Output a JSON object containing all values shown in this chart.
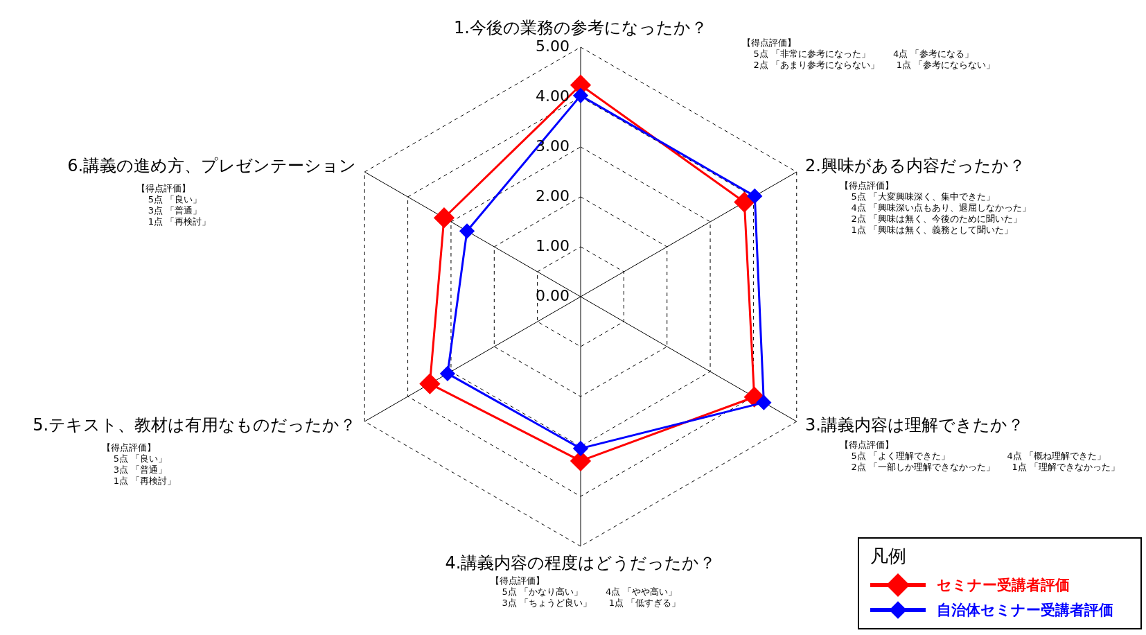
{
  "chart_data": {
    "type": "radar",
    "categories": [
      "1.今後の業務の参考になったか？",
      "2.興味がある内容だったか？",
      "3.講義内容は理解できたか？",
      "4.講義内容の程度はどうだったか？",
      "5.テキスト、教材は有用なものだったか？",
      "6.講義の進め方、プレゼンテーション"
    ],
    "series": [
      {
        "name": "セミナー受講者評価",
        "color": "#ff0000",
        "values": [
          4.24,
          3.79,
          4.02,
          3.29,
          3.49,
          3.16
        ]
      },
      {
        "name": "自治体セミナー受講者評価",
        "color": "#0000ff",
        "values": [
          4.03,
          4.03,
          4.24,
          3.04,
          3.08,
          2.63
        ]
      }
    ],
    "ylim": [
      0,
      5
    ],
    "yticks": [
      {
        "value": 0,
        "label": "0.00"
      },
      {
        "value": 1,
        "label": "1.00"
      },
      {
        "value": 2,
        "label": "2.00"
      },
      {
        "value": 3,
        "label": "3.00"
      },
      {
        "value": 4,
        "label": "4.00"
      },
      {
        "value": 5,
        "label": "5.00"
      }
    ],
    "grid": true,
    "marker": "diamond",
    "line_style": "solid",
    "legend": "bottom right",
    "legend_title": "凡例",
    "annotations": [
      "【得点評価】\n    5点 「非常に参考になった」        4点 「参考になる」\n    2点 「あまり参考にならない」      1点 「参考にならない」",
      "【得点評価】\n    5点 「大変興味深く、集中できた」\n    4点 「興味深い点もあり、退屈しなかった」\n    2点 「興味は無く、今後のために聞いた」\n    1点 「興味は無く、義務として聞いた」",
      "【得点評価】\n    5点 「よく理解できた」                    4点 「概ね理解できた」\n    2点 「一部しか理解できなかった」      1点 「理解できなかった」",
      "【得点評価】\n    5点 「かなり高い」        4点 「やや高い」\n    3点 「ちょうど良い」      1点 「低すぎる」",
      "【得点評価】\n    5点 「良い」\n    3点 「普通」\n    1点 「再検討」",
      "【得点評価】\n    5点 「良い」\n    3点 「普通」\n    1点 「再検討」"
    ]
  }
}
